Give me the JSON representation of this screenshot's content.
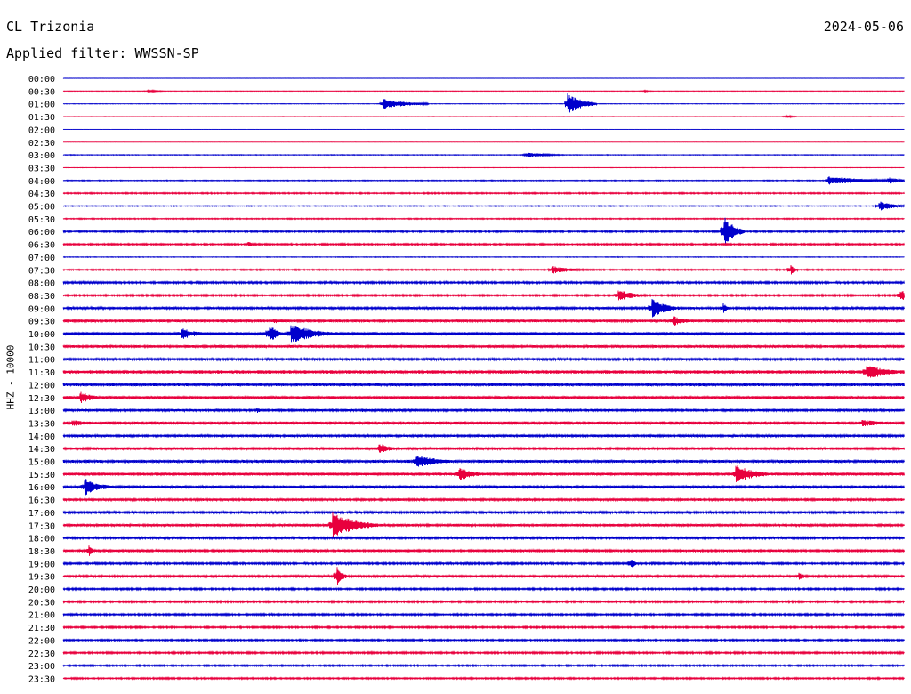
{
  "header": {
    "station": "CL Trizonia",
    "date": "2024-05-06",
    "filter": "Applied filter: WWSSN-SP"
  },
  "axis": {
    "ylabel": "HHZ - 10000"
  },
  "colors": {
    "even_trace": "#0000cc",
    "odd_trace": "#e8003d",
    "background": "#ffffff"
  },
  "chart_data": {
    "type": "line",
    "title": "CL Trizonia",
    "subtitle": "Applied filter: WWSSN-SP",
    "ylabel": "HHZ - 10000",
    "xlabel": "",
    "categories": [
      "00:00",
      "00:30",
      "01:00",
      "01:30",
      "02:00",
      "02:30",
      "03:00",
      "03:30",
      "04:00",
      "04:30",
      "05:00",
      "05:30",
      "06:00",
      "06:30",
      "07:00",
      "07:30",
      "08:00",
      "08:30",
      "09:00",
      "09:30",
      "10:00",
      "10:30",
      "11:00",
      "11:30",
      "12:00",
      "12:30",
      "13:00",
      "13:30",
      "14:00",
      "14:30",
      "15:00",
      "15:30",
      "16:00",
      "16:30",
      "17:00",
      "17:30",
      "18:00",
      "18:30",
      "19:00",
      "19:30",
      "20:00",
      "20:30",
      "21:00",
      "21:30",
      "22:00",
      "22:30",
      "23:00",
      "23:30"
    ],
    "noise_levels": [
      0.2,
      0.25,
      0.2,
      0.2,
      0.1,
      0.1,
      0.3,
      0.2,
      0.4,
      0.6,
      0.4,
      0.5,
      0.7,
      0.7,
      0.3,
      0.6,
      0.9,
      0.8,
      1.0,
      1.2,
      1.4,
      1.2,
      1.0,
      1.5,
      1.3,
      1.3,
      1.1,
      1.5,
      1.1,
      1.2,
      1.3,
      1.3,
      1.1,
      1.1,
      1.0,
      1.1,
      1.0,
      1.1,
      0.9,
      1.0,
      0.8,
      0.8,
      0.8,
      0.8,
      0.7,
      0.8,
      0.7,
      0.7
    ],
    "events": [
      {
        "row": 1,
        "x": 0.1,
        "amp": 1.5,
        "dur": 0.02
      },
      {
        "row": 1,
        "x": 0.69,
        "amp": 1.2,
        "dur": 0.01
      },
      {
        "row": 2,
        "x": 0.38,
        "amp": 6,
        "dur": 0.05
      },
      {
        "row": 2,
        "x": 0.6,
        "amp": 12,
        "dur": 0.03
      },
      {
        "row": 3,
        "x": 0.86,
        "amp": 2,
        "dur": 0.01
      },
      {
        "row": 6,
        "x": 0.55,
        "amp": 3,
        "dur": 0.04
      },
      {
        "row": 8,
        "x": 0.91,
        "amp": 5,
        "dur": 0.08
      },
      {
        "row": 8,
        "x": 0.98,
        "amp": 4,
        "dur": 0.03
      },
      {
        "row": 10,
        "x": 0.97,
        "amp": 6,
        "dur": 0.03
      },
      {
        "row": 12,
        "x": 0.786,
        "amp": 18,
        "dur": 0.02
      },
      {
        "row": 13,
        "x": 0.22,
        "amp": 3,
        "dur": 0.01
      },
      {
        "row": 15,
        "x": 0.58,
        "amp": 5,
        "dur": 0.04
      },
      {
        "row": 15,
        "x": 0.865,
        "amp": 7,
        "dur": 0.005
      },
      {
        "row": 17,
        "x": 0.66,
        "amp": 7,
        "dur": 0.03
      },
      {
        "row": 17,
        "x": 0.995,
        "amp": 7,
        "dur": 0.02
      },
      {
        "row": 18,
        "x": 0.7,
        "amp": 11,
        "dur": 0.03
      },
      {
        "row": 18,
        "x": 0.785,
        "amp": 7,
        "dur": 0.005
      },
      {
        "row": 19,
        "x": 0.725,
        "amp": 6,
        "dur": 0.03
      },
      {
        "row": 19,
        "x": 0.25,
        "amp": 3,
        "dur": 0.03
      },
      {
        "row": 20,
        "x": 0.14,
        "amp": 7,
        "dur": 0.03
      },
      {
        "row": 20,
        "x": 0.245,
        "amp": 14,
        "dur": 0.01
      },
      {
        "row": 20,
        "x": 0.27,
        "amp": 12,
        "dur": 0.05
      },
      {
        "row": 23,
        "x": 0.955,
        "amp": 10,
        "dur": 0.04
      },
      {
        "row": 25,
        "x": 0.02,
        "amp": 7,
        "dur": 0.025
      },
      {
        "row": 26,
        "x": 0.23,
        "amp": 4,
        "dur": 0.005
      },
      {
        "row": 26,
        "x": 0.355,
        "amp": 3,
        "dur": 0.005
      },
      {
        "row": 27,
        "x": 0.01,
        "amp": 4,
        "dur": 0.03
      },
      {
        "row": 27,
        "x": 0.95,
        "amp": 4,
        "dur": 0.05
      },
      {
        "row": 29,
        "x": 0.375,
        "amp": 7,
        "dur": 0.02
      },
      {
        "row": 30,
        "x": 0.42,
        "amp": 9,
        "dur": 0.04
      },
      {
        "row": 31,
        "x": 0.47,
        "amp": 8,
        "dur": 0.03
      },
      {
        "row": 31,
        "x": 0.8,
        "amp": 11,
        "dur": 0.04
      },
      {
        "row": 32,
        "x": 0.025,
        "amp": 10,
        "dur": 0.03
      },
      {
        "row": 35,
        "x": 0.32,
        "amp": 15,
        "dur": 0.05
      },
      {
        "row": 37,
        "x": 0.03,
        "amp": 7,
        "dur": 0.005
      },
      {
        "row": 38,
        "x": 0.675,
        "amp": 7,
        "dur": 0.005
      },
      {
        "row": 39,
        "x": 0.325,
        "amp": 14,
        "dur": 0.008
      },
      {
        "row": 39,
        "x": 0.875,
        "amp": 5,
        "dur": 0.008
      }
    ]
  }
}
